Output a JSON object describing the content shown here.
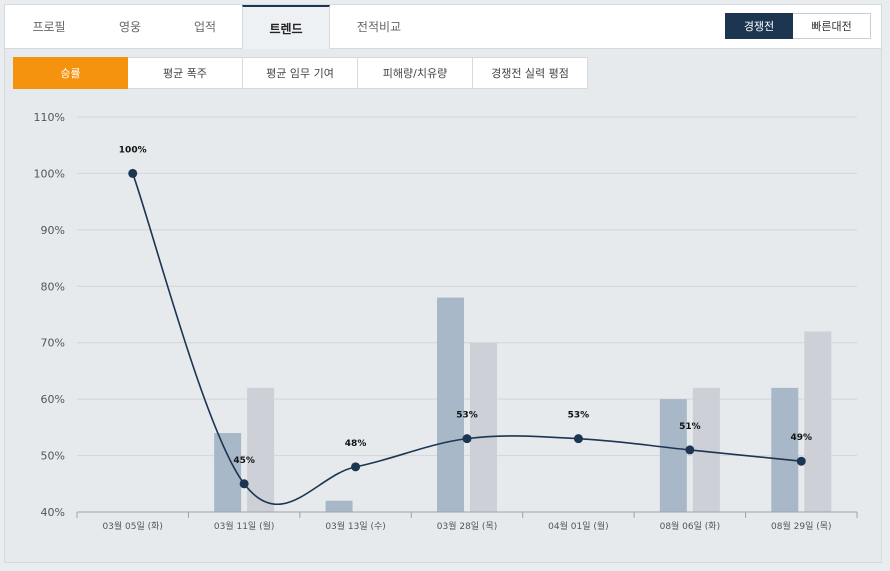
{
  "tabs": [
    {
      "label": "프로필",
      "active": false
    },
    {
      "label": "영웅",
      "active": false
    },
    {
      "label": "업적",
      "active": false
    },
    {
      "label": "트렌드",
      "active": true
    },
    {
      "label": "전적비교",
      "active": false
    }
  ],
  "mode": {
    "competitive": "경쟁전",
    "quickplay": "빠른대전",
    "selected": "경쟁전"
  },
  "subtabs": [
    {
      "label": "승률",
      "active": true
    },
    {
      "label": "평균 폭주",
      "active": false
    },
    {
      "label": "평균 임무 기여",
      "active": false
    },
    {
      "label": "피해량/치유량",
      "active": false
    },
    {
      "label": "경쟁전 실력 평점",
      "active": false
    }
  ],
  "colors": {
    "accent": "#f5930f",
    "navy": "#1c3550",
    "bar_primary": "#a9b8c8",
    "bar_secondary": "#cdd0d6",
    "line": "#1c3550"
  },
  "chart_data": {
    "type": "bar",
    "categories": [
      "03월 05일 (화)",
      "03월 11일 (월)",
      "03월 13일 (수)",
      "03월 28일 (목)",
      "04월 01일 (월)",
      "08월 06일 (화)",
      "08월 29일 (목)"
    ],
    "series": [
      {
        "kind": "bar",
        "values": [
          null,
          54,
          42,
          78,
          null,
          60,
          62
        ]
      },
      {
        "kind": "bar",
        "values": [
          null,
          62,
          null,
          70,
          null,
          62,
          72
        ]
      },
      {
        "kind": "line",
        "values": [
          100,
          45,
          48,
          53,
          53,
          51,
          49
        ]
      }
    ],
    "data_labels": [
      "100%",
      "45%",
      "48%",
      "53%",
      "53%",
      "51%",
      "49%"
    ],
    "yticks": [
      "110%",
      "100%",
      "90%",
      "80%",
      "70%",
      "60%",
      "50%",
      "40%"
    ],
    "ylim": [
      40,
      110
    ],
    "grid": true
  }
}
